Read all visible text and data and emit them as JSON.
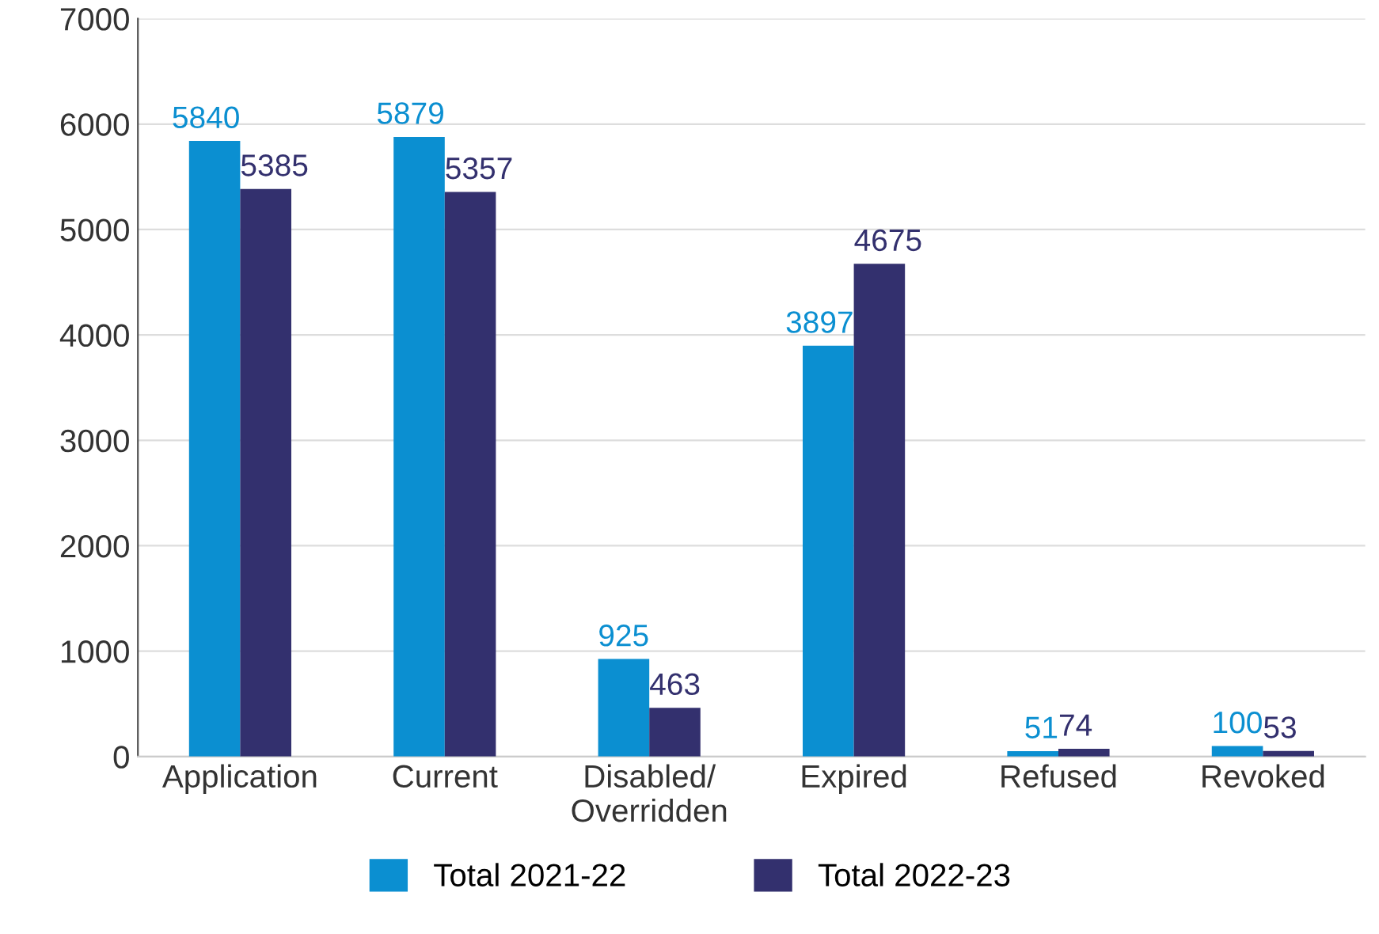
{
  "chart_data": {
    "type": "bar",
    "categories": [
      "Application",
      "Current",
      "Disabled/\nOverridden",
      "Expired",
      "Refused",
      "Revoked"
    ],
    "series": [
      {
        "name": "Total 2021-22",
        "color": "#0b8fd1",
        "values": [
          5840,
          5879,
          925,
          3897,
          51,
          100
        ]
      },
      {
        "name": "Total 2022-23",
        "color": "#33306e",
        "values": [
          5385,
          5357,
          463,
          4675,
          74,
          53
        ]
      }
    ],
    "ylim": [
      0,
      7000
    ],
    "yticks": [
      0,
      1000,
      2000,
      3000,
      4000,
      5000,
      6000,
      7000
    ],
    "grid": "y",
    "legend": "bottom",
    "data_labels": true
  }
}
